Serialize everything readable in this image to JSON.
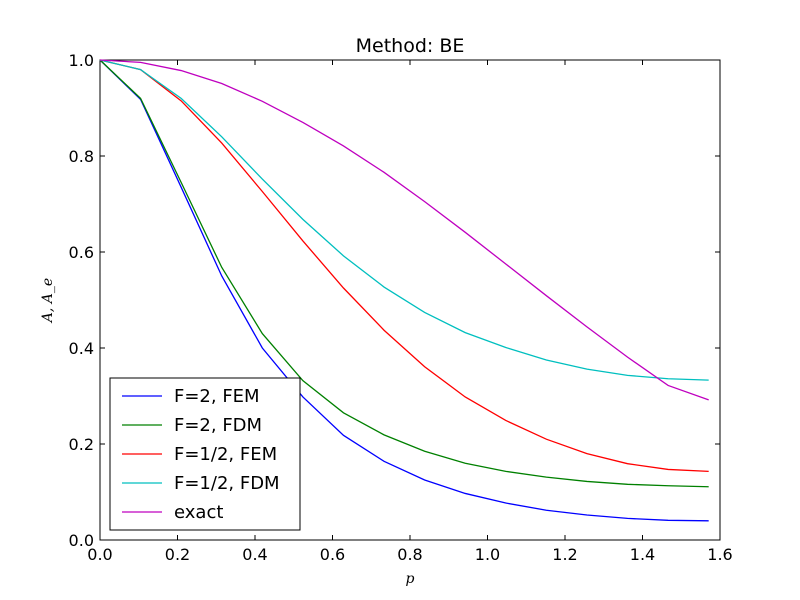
{
  "chart_data": {
    "type": "line",
    "title": "Method: BE",
    "xlabel": "p",
    "ylabel": "A, A_e",
    "xlim": [
      0.0,
      1.6
    ],
    "ylim": [
      0.0,
      1.0
    ],
    "xticks": [
      0.0,
      0.2,
      0.4,
      0.6,
      0.8,
      1.0,
      1.2,
      1.4,
      1.6
    ],
    "xtick_labels": [
      "0.0",
      "0.2",
      "0.4",
      "0.6",
      "0.8",
      "1.0",
      "1.2",
      "1.4",
      "1.6"
    ],
    "yticks": [
      0.0,
      0.2,
      0.4,
      0.6,
      0.8,
      1.0
    ],
    "ytick_labels": [
      "0.0",
      "0.2",
      "0.4",
      "0.6",
      "0.8",
      "1.0"
    ],
    "grid": false,
    "legend_position": "lower-left",
    "x": [
      0.0,
      0.1047,
      0.2094,
      0.3142,
      0.4189,
      0.5236,
      0.6283,
      0.733,
      0.8378,
      0.9425,
      1.0472,
      1.1519,
      1.2566,
      1.3614,
      1.4661,
      1.5708
    ],
    "series": [
      {
        "name": "F=2, FEM",
        "color": "#0000ff",
        "values": [
          1.0,
          0.918,
          0.735,
          0.55,
          0.4,
          0.298,
          0.218,
          0.164,
          0.125,
          0.097,
          0.077,
          0.062,
          0.052,
          0.045,
          0.041,
          0.04
        ]
      },
      {
        "name": "F=2, FDM",
        "color": "#008000",
        "values": [
          1.0,
          0.92,
          0.745,
          0.568,
          0.43,
          0.332,
          0.265,
          0.219,
          0.185,
          0.16,
          0.143,
          0.131,
          0.122,
          0.116,
          0.113,
          0.111
        ]
      },
      {
        "name": "F=1/2, FEM",
        "color": "#ff0000",
        "values": [
          1.0,
          0.98,
          0.915,
          0.827,
          0.726,
          0.623,
          0.525,
          0.437,
          0.361,
          0.298,
          0.249,
          0.21,
          0.18,
          0.159,
          0.147,
          0.143
        ]
      },
      {
        "name": "F=1/2, FDM",
        "color": "#00bfbf",
        "values": [
          1.0,
          0.98,
          0.92,
          0.84,
          0.752,
          0.668,
          0.592,
          0.527,
          0.474,
          0.432,
          0.401,
          0.375,
          0.356,
          0.343,
          0.336,
          0.333
        ]
      },
      {
        "name": "exact",
        "color": "#bf00bf",
        "values": [
          1.0,
          0.995,
          0.978,
          0.951,
          0.914,
          0.87,
          0.821,
          0.766,
          0.705,
          0.641,
          0.575,
          0.509,
          0.444,
          0.381,
          0.322,
          0.292
        ]
      }
    ]
  }
}
